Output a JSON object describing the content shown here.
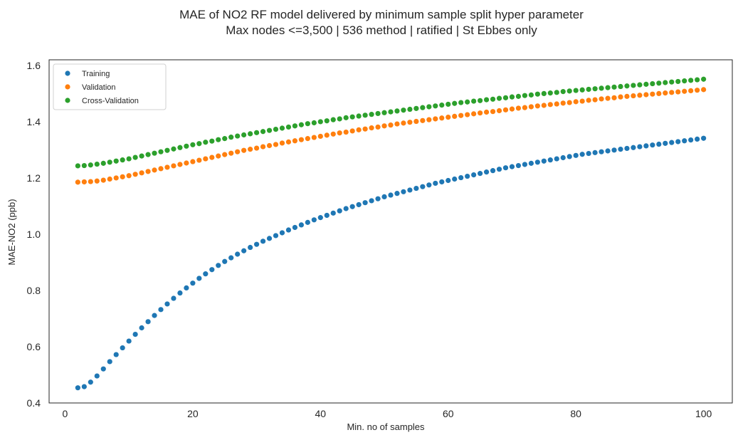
{
  "chart_data": {
    "type": "scatter",
    "title": "MAE of NO2 RF model delivered by minimum sample split hyper parameter",
    "subtitle": "Max nodes <=3,500 | 536 method | ratified | St Ebbes only",
    "xlabel": "Min. no of samples",
    "ylabel": "MAE-NO2 (ppb)",
    "xlim": [
      -2.5,
      104.5
    ],
    "ylim": [
      0.4,
      1.62
    ],
    "xticks": [
      0,
      20,
      40,
      60,
      80,
      100
    ],
    "xtick_labels": [
      "0",
      "20",
      "40",
      "60",
      "80",
      "100"
    ],
    "yticks": [
      0.4,
      0.6,
      0.8,
      1.0,
      1.2,
      1.4,
      1.6
    ],
    "ytick_labels": [
      "0.4",
      "0.6",
      "0.8",
      "1.0",
      "1.2",
      "1.4",
      "1.6"
    ],
    "grid": false,
    "legend_position": "upper-left",
    "x": [
      2,
      3,
      4,
      5,
      6,
      7,
      8,
      9,
      10,
      11,
      12,
      13,
      14,
      15,
      16,
      17,
      18,
      19,
      20,
      21,
      22,
      23,
      24,
      25,
      26,
      27,
      28,
      29,
      30,
      31,
      32,
      33,
      34,
      35,
      36,
      37,
      38,
      39,
      40,
      41,
      42,
      43,
      44,
      45,
      46,
      47,
      48,
      49,
      50,
      51,
      52,
      53,
      54,
      55,
      56,
      57,
      58,
      59,
      60,
      61,
      62,
      63,
      64,
      65,
      66,
      67,
      68,
      69,
      70,
      71,
      72,
      73,
      74,
      75,
      76,
      77,
      78,
      79,
      80,
      81,
      82,
      83,
      84,
      85,
      86,
      87,
      88,
      89,
      90,
      91,
      92,
      93,
      94,
      95,
      96,
      97,
      98,
      99,
      100
    ],
    "series": [
      {
        "name": "Training",
        "color": "#1f77b4",
        "values": [
          0.454,
          0.458,
          0.474,
          0.496,
          0.521,
          0.547,
          0.572,
          0.596,
          0.62,
          0.644,
          0.667,
          0.689,
          0.711,
          0.732,
          0.752,
          0.772,
          0.791,
          0.809,
          0.826,
          0.843,
          0.859,
          0.874,
          0.889,
          0.903,
          0.916,
          0.929,
          0.941,
          0.953,
          0.964,
          0.975,
          0.985,
          0.995,
          1.005,
          1.015,
          1.024,
          1.033,
          1.042,
          1.051,
          1.059,
          1.067,
          1.075,
          1.083,
          1.091,
          1.098,
          1.105,
          1.112,
          1.119,
          1.126,
          1.133,
          1.139,
          1.145,
          1.151,
          1.157,
          1.163,
          1.169,
          1.175,
          1.181,
          1.186,
          1.191,
          1.196,
          1.201,
          1.206,
          1.211,
          1.216,
          1.221,
          1.226,
          1.231,
          1.236,
          1.24,
          1.244,
          1.248,
          1.252,
          1.256,
          1.26,
          1.264,
          1.268,
          1.272,
          1.276,
          1.28,
          1.284,
          1.287,
          1.29,
          1.293,
          1.296,
          1.299,
          1.302,
          1.305,
          1.308,
          1.311,
          1.314,
          1.317,
          1.32,
          1.323,
          1.326,
          1.329,
          1.332,
          1.335,
          1.338,
          1.341
        ]
      },
      {
        "name": "Validation",
        "color": "#ff7f0e",
        "values": [
          1.185,
          1.186,
          1.187,
          1.189,
          1.192,
          1.196,
          1.2,
          1.204,
          1.208,
          1.213,
          1.218,
          1.223,
          1.228,
          1.233,
          1.238,
          1.243,
          1.248,
          1.253,
          1.258,
          1.263,
          1.268,
          1.273,
          1.278,
          1.283,
          1.288,
          1.293,
          1.298,
          1.302,
          1.306,
          1.311,
          1.315,
          1.319,
          1.324,
          1.328,
          1.332,
          1.336,
          1.34,
          1.344,
          1.348,
          1.352,
          1.356,
          1.36,
          1.363,
          1.367,
          1.371,
          1.374,
          1.378,
          1.381,
          1.385,
          1.388,
          1.392,
          1.395,
          1.398,
          1.401,
          1.404,
          1.407,
          1.41,
          1.413,
          1.416,
          1.419,
          1.422,
          1.425,
          1.428,
          1.431,
          1.434,
          1.436,
          1.439,
          1.442,
          1.445,
          1.448,
          1.45,
          1.453,
          1.456,
          1.458,
          1.461,
          1.463,
          1.466,
          1.468,
          1.471,
          1.473,
          1.476,
          1.478,
          1.481,
          1.483,
          1.485,
          1.488,
          1.49,
          1.492,
          1.494,
          1.496,
          1.498,
          1.5,
          1.502,
          1.504,
          1.506,
          1.508,
          1.51,
          1.512,
          1.514
        ]
      },
      {
        "name": "Cross-Validation",
        "color": "#2ca02c",
        "values": [
          1.243,
          1.244,
          1.246,
          1.249,
          1.252,
          1.256,
          1.26,
          1.264,
          1.268,
          1.273,
          1.278,
          1.283,
          1.288,
          1.293,
          1.298,
          1.303,
          1.308,
          1.313,
          1.318,
          1.322,
          1.327,
          1.331,
          1.336,
          1.34,
          1.345,
          1.349,
          1.353,
          1.357,
          1.361,
          1.365,
          1.369,
          1.373,
          1.377,
          1.381,
          1.385,
          1.389,
          1.393,
          1.396,
          1.4,
          1.403,
          1.407,
          1.41,
          1.414,
          1.417,
          1.42,
          1.423,
          1.426,
          1.429,
          1.432,
          1.435,
          1.438,
          1.441,
          1.444,
          1.447,
          1.45,
          1.453,
          1.456,
          1.459,
          1.462,
          1.465,
          1.468,
          1.47,
          1.473,
          1.475,
          1.478,
          1.48,
          1.483,
          1.485,
          1.488,
          1.49,
          1.493,
          1.495,
          1.498,
          1.5,
          1.502,
          1.504,
          1.507,
          1.509,
          1.511,
          1.513,
          1.515,
          1.517,
          1.519,
          1.521,
          1.523,
          1.525,
          1.527,
          1.529,
          1.531,
          1.533,
          1.535,
          1.537,
          1.539,
          1.541,
          1.543,
          1.545,
          1.547,
          1.549,
          1.551
        ]
      }
    ]
  }
}
